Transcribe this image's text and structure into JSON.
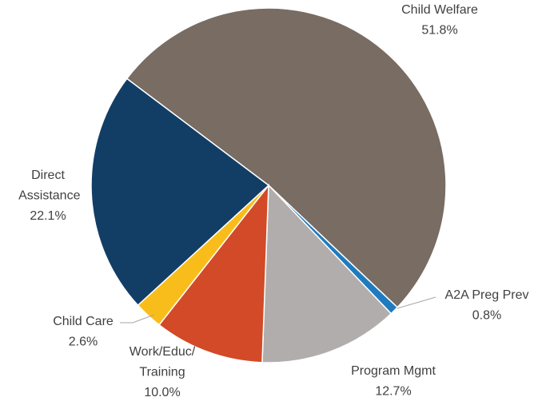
{
  "chart_data": {
    "type": "pie",
    "categories": [
      "Child Welfare",
      "A2A Preg Prev",
      "Program Mgmt",
      "Work/Educ/Training",
      "Child Care",
      "Direct Assistance"
    ],
    "values": [
      51.8,
      0.8,
      12.7,
      10.0,
      2.6,
      22.1
    ],
    "value_labels": [
      "51.8%",
      "0.8%",
      "12.7%",
      "10.0%",
      "2.6%",
      "22.1%"
    ],
    "colors": [
      "#786c63",
      "#1f7bbf",
      "#b0adac",
      "#d24a27",
      "#f9bd1b",
      "#123e66"
    ]
  }
}
